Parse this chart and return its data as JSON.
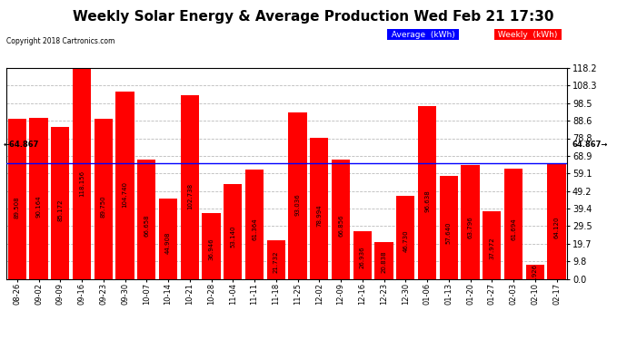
{
  "title": "Weekly Solar Energy & Average Production Wed Feb 21 17:30",
  "copyright": "Copyright 2018 Cartronics.com",
  "categories": [
    "08-26",
    "09-02",
    "09-09",
    "09-16",
    "09-23",
    "09-30",
    "10-07",
    "10-14",
    "10-21",
    "10-28",
    "11-04",
    "11-11",
    "11-18",
    "11-25",
    "12-02",
    "12-09",
    "12-16",
    "12-23",
    "12-30",
    "01-06",
    "01-13",
    "01-20",
    "01-27",
    "02-03",
    "02-10",
    "02-17"
  ],
  "values": [
    89.508,
    90.164,
    85.172,
    118.156,
    89.75,
    104.74,
    66.658,
    44.908,
    102.738,
    36.946,
    53.14,
    61.364,
    21.732,
    93.036,
    78.994,
    66.856,
    26.936,
    20.838,
    46.73,
    96.638,
    57.64,
    63.796,
    37.972,
    61.694,
    7.926,
    64.12
  ],
  "average_line": 64.867,
  "bar_color": "#FF0000",
  "average_color": "#0000FF",
  "ylim": [
    0,
    118.2
  ],
  "yticks": [
    0.0,
    9.8,
    19.7,
    29.5,
    39.4,
    49.2,
    59.1,
    68.9,
    78.8,
    88.6,
    98.5,
    108.3,
    118.2
  ],
  "background_color": "#FFFFFF",
  "plot_bg_color": "#FFFFFF",
  "grid_color": "#BBBBBB",
  "legend_avg_bg": "#0000FF",
  "legend_weekly_bg": "#FF0000",
  "value_fontsize": 5.0,
  "title_fontsize": 11,
  "copyright_fontsize": 5.5,
  "xlabel_fontsize": 6.0,
  "ylabel_fontsize": 7.0
}
